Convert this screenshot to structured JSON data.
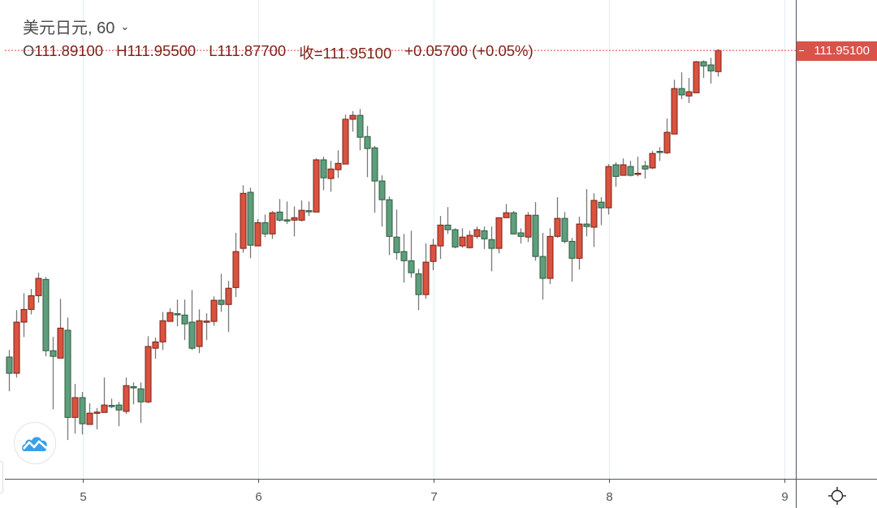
{
  "header": {
    "symbol_title": "美元日元, 60"
  },
  "ohlc_legend": {
    "open_label": "O",
    "open": "111.89100",
    "high_label": "H",
    "high": "111.95500",
    "low_label": "L",
    "low": "111.87700",
    "close_label": "收=",
    "close": "111.95100",
    "change": "+0.05700 (+0.05%)"
  },
  "price_tag": "111.95100",
  "colors": {
    "up": "#d9533f",
    "up_border": "#7a1f14",
    "down": "#5f9e7d",
    "down_border": "#2b5a3c",
    "wick": "#7a7a7a",
    "grid": "#e3eef3",
    "last_price_line": "#e0463a"
  },
  "chart_data": {
    "type": "candlestick",
    "title": "美元日元, 60",
    "interval": "60",
    "ylim": [
      110.737,
      112.094
    ],
    "grid": "vertical",
    "x_ticks": [
      {
        "label": "5",
        "bar": 10.1
      },
      {
        "label": "6",
        "bar": 34.1
      },
      {
        "label": "7",
        "bar": 58.1
      },
      {
        "label": "8",
        "bar": 82.1
      },
      {
        "label": "9",
        "bar": 106.1
      }
    ],
    "last_price": 111.951,
    "candles": [
      [
        111.082,
        111.102,
        110.985,
        111.036
      ],
      [
        111.036,
        111.215,
        111.024,
        111.181
      ],
      [
        111.181,
        111.263,
        111.139,
        111.217
      ],
      [
        111.217,
        111.275,
        111.203,
        111.256
      ],
      [
        111.256,
        111.321,
        111.236,
        111.305
      ],
      [
        111.302,
        111.309,
        111.084,
        111.1
      ],
      [
        111.1,
        111.139,
        110.934,
        111.084
      ],
      [
        111.079,
        111.247,
        111.079,
        111.164
      ],
      [
        111.158,
        111.194,
        110.847,
        110.911
      ],
      [
        110.911,
        111.006,
        110.865,
        110.967
      ],
      [
        110.967,
        110.983,
        110.863,
        110.893
      ],
      [
        110.891,
        110.951,
        110.891,
        110.923
      ],
      [
        110.924,
        110.937,
        110.877,
        110.926
      ],
      [
        110.925,
        111.024,
        110.925,
        110.946
      ],
      [
        110.945,
        110.964,
        110.937,
        110.942
      ],
      [
        110.946,
        110.955,
        110.886,
        110.932
      ],
      [
        110.928,
        111.024,
        110.921,
        111.001
      ],
      [
        110.998,
        111.01,
        110.948,
        110.995
      ],
      [
        110.992,
        111.01,
        110.895,
        110.955
      ],
      [
        110.955,
        111.141,
        110.951,
        111.112
      ],
      [
        111.107,
        111.137,
        111.077,
        111.125
      ],
      [
        111.125,
        111.21,
        111.102,
        111.185
      ],
      [
        111.183,
        111.22,
        111.183,
        111.208
      ],
      [
        111.205,
        111.245,
        111.169,
        111.202
      ],
      [
        111.201,
        111.245,
        111.13,
        111.176
      ],
      [
        111.181,
        111.272,
        111.102,
        111.107
      ],
      [
        111.112,
        111.217,
        111.093,
        111.185
      ],
      [
        111.182,
        111.206,
        111.13,
        111.184
      ],
      [
        111.183,
        111.254,
        111.171,
        111.243
      ],
      [
        111.243,
        111.318,
        111.21,
        111.231
      ],
      [
        111.231,
        111.298,
        111.153,
        111.277
      ],
      [
        111.279,
        111.434,
        111.252,
        111.381
      ],
      [
        111.39,
        111.569,
        111.378,
        111.546
      ],
      [
        111.549,
        111.562,
        111.362,
        111.399
      ],
      [
        111.397,
        111.473,
        111.397,
        111.463
      ],
      [
        111.463,
        111.486,
        111.422,
        111.431
      ],
      [
        111.431,
        111.496,
        111.417,
        111.491
      ],
      [
        111.493,
        111.53,
        111.466,
        111.47
      ],
      [
        111.471,
        111.523,
        111.459,
        111.469
      ],
      [
        111.47,
        111.509,
        111.424,
        111.477
      ],
      [
        111.47,
        111.526,
        111.466,
        111.498
      ],
      [
        111.497,
        111.523,
        111.482,
        111.494
      ],
      [
        111.493,
        111.645,
        111.493,
        111.641
      ],
      [
        111.641,
        111.65,
        111.555,
        111.59
      ],
      [
        111.588,
        111.638,
        111.551,
        111.615
      ],
      [
        111.613,
        111.668,
        111.59,
        111.631
      ],
      [
        111.629,
        111.769,
        111.629,
        111.756
      ],
      [
        111.756,
        111.779,
        111.721,
        111.767
      ],
      [
        111.767,
        111.785,
        111.668,
        111.705
      ],
      [
        111.707,
        111.737,
        111.592,
        111.673
      ],
      [
        111.675,
        111.68,
        111.491,
        111.581
      ],
      [
        111.581,
        111.597,
        111.452,
        111.528
      ],
      [
        111.528,
        111.537,
        111.371,
        111.424
      ],
      [
        111.422,
        111.5,
        111.358,
        111.378
      ],
      [
        111.381,
        111.431,
        111.293,
        111.355
      ],
      [
        111.355,
        111.44,
        111.307,
        111.321
      ],
      [
        111.318,
        111.332,
        111.215,
        111.259
      ],
      [
        111.259,
        111.404,
        111.247,
        111.351
      ],
      [
        111.353,
        111.417,
        111.328,
        111.399
      ],
      [
        111.397,
        111.482,
        111.36,
        111.456
      ],
      [
        111.456,
        111.507,
        111.431,
        111.443
      ],
      [
        111.443,
        111.447,
        111.39,
        111.394
      ],
      [
        111.397,
        111.447,
        111.392,
        111.422
      ],
      [
        111.392,
        111.44,
        111.39,
        111.427
      ],
      [
        111.424,
        111.452,
        111.417,
        111.443
      ],
      [
        111.44,
        111.452,
        111.388,
        111.417
      ],
      [
        111.415,
        111.452,
        111.325,
        111.39
      ],
      [
        111.39,
        111.477,
        111.376,
        111.477
      ],
      [
        111.477,
        111.516,
        111.477,
        111.491
      ],
      [
        111.491,
        111.496,
        111.429,
        111.431
      ],
      [
        111.434,
        111.447,
        111.404,
        111.424
      ],
      [
        111.422,
        111.493,
        111.408,
        111.484
      ],
      [
        111.484,
        111.521,
        111.355,
        111.367
      ],
      [
        111.367,
        111.434,
        111.245,
        111.305
      ],
      [
        111.305,
        111.447,
        111.289,
        111.424
      ],
      [
        111.424,
        111.535,
        111.42,
        111.475
      ],
      [
        111.475,
        111.493,
        111.404,
        111.41
      ],
      [
        111.41,
        111.42,
        111.296,
        111.362
      ],
      [
        111.362,
        111.48,
        111.33,
        111.459
      ],
      [
        111.459,
        111.558,
        111.424,
        111.452
      ],
      [
        111.45,
        111.546,
        111.394,
        111.526
      ],
      [
        111.521,
        111.535,
        111.456,
        111.505
      ],
      [
        111.505,
        111.629,
        111.486,
        111.622
      ],
      [
        111.627,
        111.634,
        111.565,
        111.594
      ],
      [
        111.597,
        111.645,
        111.597,
        111.627
      ],
      [
        111.622,
        111.638,
        111.594,
        111.597
      ],
      [
        111.6,
        111.65,
        111.594,
        111.603
      ],
      [
        111.624,
        111.638,
        111.588,
        111.615
      ],
      [
        111.618,
        111.666,
        111.615,
        111.659
      ],
      [
        111.665,
        111.677,
        111.638,
        111.662
      ],
      [
        111.661,
        111.758,
        111.657,
        111.719
      ],
      [
        111.714,
        111.868,
        111.714,
        111.843
      ],
      [
        111.843,
        111.889,
        111.813,
        111.825
      ],
      [
        111.822,
        111.873,
        111.802,
        111.834
      ],
      [
        111.831,
        111.921,
        111.831,
        111.919
      ],
      [
        111.919,
        111.923,
        111.873,
        111.907
      ],
      [
        111.91,
        111.93,
        111.857,
        111.893
      ],
      [
        111.891,
        111.955,
        111.877,
        111.951
      ]
    ]
  }
}
